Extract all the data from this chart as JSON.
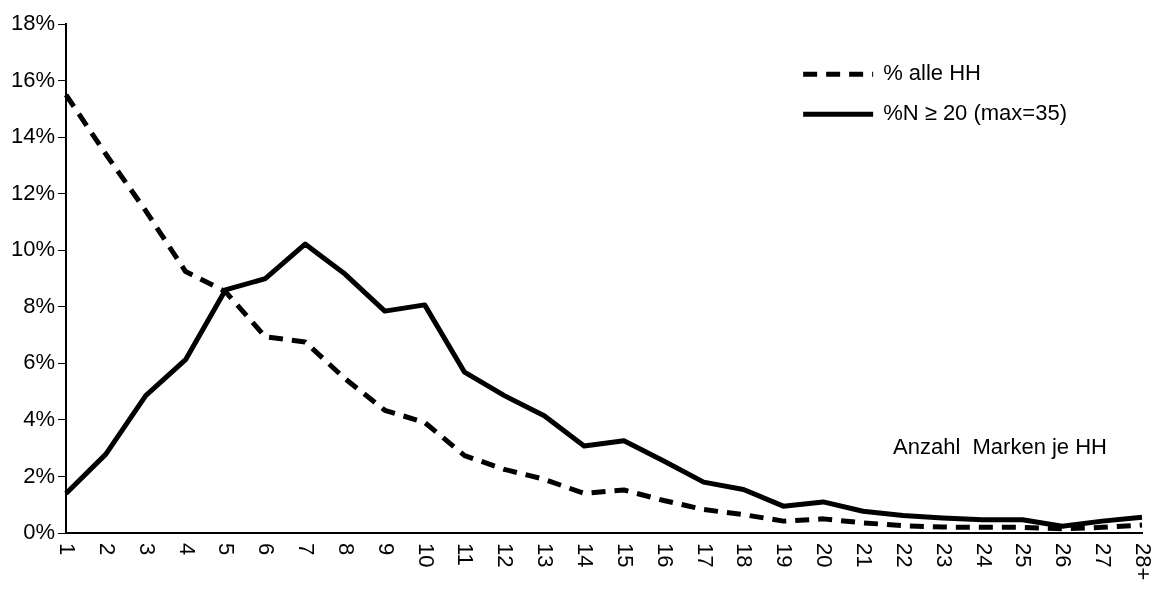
{
  "chart_data": {
    "type": "line",
    "categories": [
      "1",
      "2",
      "3",
      "4",
      "5",
      "6",
      "7",
      "8",
      "9",
      "10",
      "11",
      "12",
      "13",
      "14",
      "15",
      "16",
      "17",
      "18",
      "19",
      "20",
      "21",
      "22",
      "23",
      "24",
      "25",
      "26",
      "27",
      "28+"
    ],
    "series": [
      {
        "name": "% alle HH",
        "color": "#000000",
        "line_style": "dashed",
        "values": [
          15.5,
          13.4,
          11.4,
          9.25,
          8.54,
          6.94,
          6.76,
          5.46,
          4.34,
          3.91,
          2.74,
          2.25,
          1.9,
          1.4,
          1.52,
          1.15,
          0.83,
          0.65,
          0.42,
          0.5,
          0.36,
          0.26,
          0.21,
          0.2,
          0.2,
          0.15,
          0.2,
          0.28
        ]
      },
      {
        "name": "%N ≥ 20 (max=35)",
        "color": "#000000",
        "line_style": "solid",
        "values": [
          1.4,
          2.79,
          4.86,
          6.13,
          8.6,
          9.0,
          10.22,
          9.16,
          7.85,
          8.07,
          5.69,
          4.86,
          4.15,
          3.08,
          3.26,
          2.55,
          1.8,
          1.54,
          0.95,
          1.1,
          0.77,
          0.62,
          0.53,
          0.47,
          0.47,
          0.24,
          0.42,
          0.56
        ]
      }
    ],
    "ylim": [
      0,
      18
    ],
    "yticks": [
      {
        "value": 0,
        "label": "0%"
      },
      {
        "value": 2,
        "label": "2%"
      },
      {
        "value": 4,
        "label": "4%"
      },
      {
        "value": 6,
        "label": "6%"
      },
      {
        "value": 8,
        "label": "8%"
      },
      {
        "value": 10,
        "label": "10%"
      },
      {
        "value": 12,
        "label": "12%"
      },
      {
        "value": 14,
        "label": "14%"
      },
      {
        "value": 16,
        "label": "16%"
      },
      {
        "value": 18,
        "label": "18%"
      }
    ],
    "annotations": [
      "Anzahl  Marken je HH"
    ],
    "legend": "top right",
    "grid": false,
    "marker": "none"
  }
}
